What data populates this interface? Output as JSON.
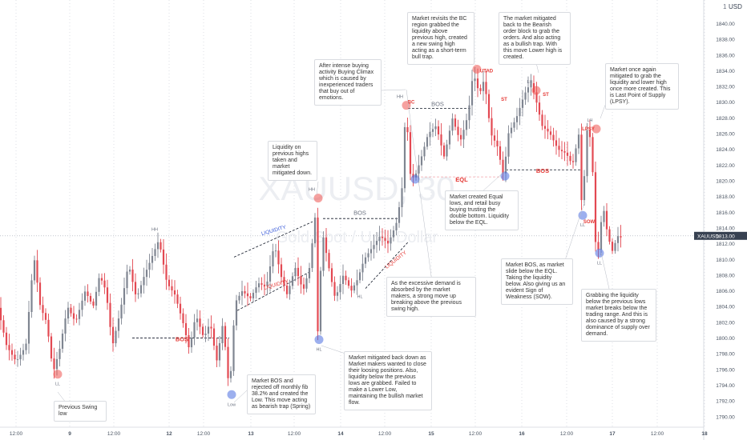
{
  "chart_data": {
    "type": "candlestick",
    "watermark": "XAUUSD, 30",
    "watermark_sub": "Gold Spot / U.S. Dollar",
    "currency_label": "USD",
    "currency_prefix": "1",
    "ylim": [
      1788.8,
      1843.0
    ],
    "price_axis_labels": [
      1790,
      1792,
      1794,
      1796,
      1798,
      1800,
      1802,
      1804,
      1806,
      1808,
      1810,
      1812,
      1814,
      1816,
      1818,
      1820,
      1822,
      1824,
      1826,
      1828,
      1830,
      1832,
      1834,
      1836,
      1838,
      1840
    ],
    "price_axis_label_format": "2dp",
    "current_price": {
      "symbol": "XAUUSD",
      "value": "1813.00",
      "color": "#374151"
    },
    "x_axis_labels": [
      "12:00",
      "9",
      "12:00",
      "12",
      "12:00",
      "13",
      "12:00",
      "14",
      "12:00",
      "15",
      "12:00",
      "16",
      "12:00",
      "17",
      "12:00",
      "18"
    ],
    "colors": {
      "up": "#7f8591",
      "down": "#e34952",
      "text": "#555555",
      "red_text": "#e53935",
      "blue_text": "#3a5bd9",
      "grid": "#c8cbd3"
    },
    "swing_points": [
      {
        "label": "LL",
        "kind": "low",
        "color": "red",
        "x": 72,
        "price": 1795.4
      },
      {
        "label": "HH",
        "kind": "high",
        "color": "none",
        "x": 201,
        "price": 1812.7
      },
      {
        "label": "Low",
        "kind": "low",
        "color": "blue",
        "x": 289,
        "price": 1792.8
      },
      {
        "label": "HH",
        "kind": "high",
        "color": "red",
        "x": 397,
        "price": 1817.8
      },
      {
        "label": "HL",
        "kind": "low",
        "color": "blue",
        "x": 398,
        "price": 1799.8
      },
      {
        "label": "HL",
        "kind": "low",
        "color": "none",
        "x": 449,
        "price": 1806.5
      },
      {
        "label": "HH",
        "kind": "high",
        "color": "red",
        "x": 507,
        "price": 1829.6
      },
      {
        "label": "HH",
        "kind": "high",
        "color": "red",
        "x": 595,
        "price": 1834.2
      },
      {
        "label": "LH",
        "kind": "high",
        "color": "red",
        "x": 669,
        "price": 1831.5
      },
      {
        "label": "LH",
        "kind": "high",
        "color": "red",
        "x": 744,
        "price": 1826.6
      },
      {
        "label": "",
        "kind": "low",
        "color": "blue",
        "x": 518,
        "price": 1820.2
      },
      {
        "label": "",
        "kind": "low",
        "color": "blue",
        "x": 630,
        "price": 1820.6
      },
      {
        "label": "LL",
        "kind": "low",
        "color": "blue",
        "x": 727,
        "price": 1815.6
      },
      {
        "label": "LL",
        "kind": "low",
        "color": "blue",
        "x": 748,
        "price": 1810.8
      }
    ],
    "annotations_red": [
      {
        "text": "BOS",
        "x": 227,
        "price": 1799.6
      },
      {
        "text": "EQL",
        "x": 576,
        "price": 1819.9
      },
      {
        "text": "BOS",
        "x": 677,
        "price": 1821.0
      },
      {
        "text": "BC",
        "x": 513,
        "price": 1829.8
      },
      {
        "text": "UTAD",
        "x": 607,
        "price": 1833.8
      },
      {
        "text": "ST",
        "x": 681,
        "price": 1830.8
      },
      {
        "text": "LPSY",
        "x": 734,
        "price": 1826.4
      },
      {
        "text": "SOW",
        "x": 735,
        "price": 1814.6
      },
      {
        "text": "ST",
        "x": 629,
        "price": 1830.2
      }
    ],
    "annotations_gray": [
      {
        "text": "BOS",
        "x": 449,
        "price": 1815.7
      },
      {
        "text": "BOS",
        "x": 546,
        "price": 1829.5
      }
    ],
    "trend_labels": [
      {
        "text": "LIQUIDITY",
        "color": "blue",
        "x": 342,
        "price": 1813.5,
        "angle": -16
      },
      {
        "text": "LIQUIDITY",
        "color": "red",
        "x": 345,
        "price": 1806.6,
        "angle": -16
      },
      {
        "text": "LIQUIDITY",
        "color": "red",
        "x": 495,
        "price": 1809.8,
        "angle": -38
      }
    ],
    "notes": [
      {
        "id": "note-liquidity-highs",
        "text": "Liquidity on previous highs taken and market mitigated down."
      },
      {
        "id": "note-buying-climax",
        "text": "After intense buying activity Buying Climax which is caused by inexperienced traders that buy out of emotions."
      },
      {
        "id": "note-bc-region",
        "text": "Market revisits the BC region grabbed the liquidity above previous high, created a new swing high acting as a short-term bull trap."
      },
      {
        "id": "note-bearish-ob",
        "text": "The market mitigated back to the Bearish order block to grab the orders. And also acting as a bullish trap. With this move Lower high is created."
      },
      {
        "id": "note-lpsy",
        "text": "Market once again mitigated to grab the liquidity and lower high once more created. This is Last Point of Supply (LPSY)."
      },
      {
        "id": "note-equal-lows",
        "text": "Market created Equal lows, and retail busy buying trusting the double bottom. Liquidity below the EQL."
      },
      {
        "id": "note-demand",
        "text": "As the excessive demand is absorbed by the market makers, a strong move up breaking above the previous swing high."
      },
      {
        "id": "note-sow",
        "text": "Market BOS, as market slide below the EQL. Taking the liquidity below. Also giving us an evident Sign of Weakness (SOW)."
      },
      {
        "id": "note-grabbing-liquidity",
        "text": "Grabbing the liquidity below the previous lows market breaks below the trading range. And this is also caused by a strong dominance of supply over demand."
      },
      {
        "id": "note-mitigated-back",
        "text": "Market mitigated back down as Market makers wanted to close their loosing positions. Also, liquidity below the previous lows are grabbed. Failed to make a Lower Low, maintaining the bullish market flow."
      },
      {
        "id": "note-spring",
        "text": "Market BOS and rejected off monthly fib 38.2% and created the Low. This move acting as bearish trap (Spring)"
      },
      {
        "id": "note-previous-swing-low",
        "text": "Previous Swing low"
      }
    ]
  }
}
